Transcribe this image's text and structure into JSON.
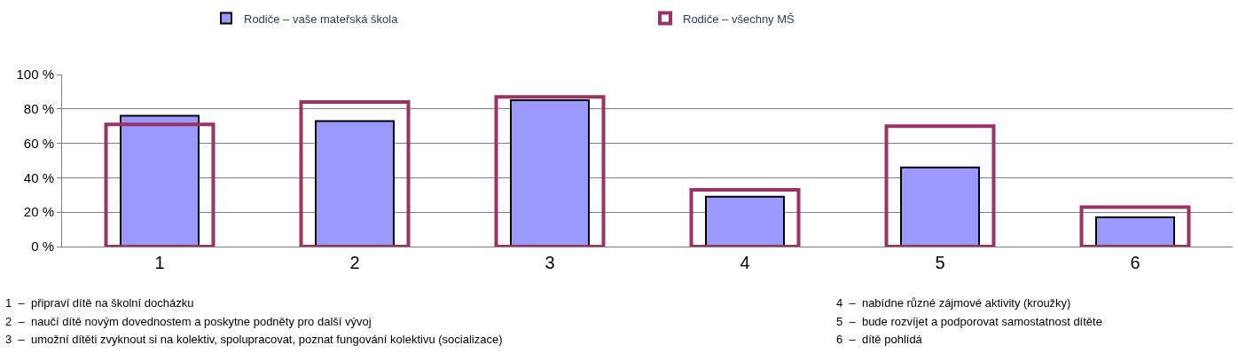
{
  "chart_data": {
    "type": "bar",
    "categories": [
      "1",
      "2",
      "3",
      "4",
      "5",
      "6"
    ],
    "series": [
      {
        "name": "Rodiče – vaše mateřská škola",
        "color": "#9999ff",
        "values": [
          76,
          73,
          85,
          29,
          46,
          17
        ]
      },
      {
        "name": "Rodiče – všechny MŠ",
        "color": "#993366",
        "values": [
          71,
          84,
          87,
          33,
          70,
          23
        ]
      }
    ],
    "ylim": [
      0,
      100
    ],
    "yticks": [
      {
        "value": 0,
        "label": "0 %"
      },
      {
        "value": 20,
        "label": "20 %"
      },
      {
        "value": 40,
        "label": "40 %"
      },
      {
        "value": 60,
        "label": "60 %"
      },
      {
        "value": 80,
        "label": "80 %"
      },
      {
        "value": 100,
        "label": "100 %"
      }
    ],
    "grid": "y",
    "legend": "top",
    "annotations": [
      "1  –  připraví dítě na školní docházku",
      "2  –  naučí dítě novým dovednostem a poskytne podněty pro další vývoj",
      "3  –  umožní dítěti zvyknout si na kolektiv, spolupracovat, poznat fungování kolektivu (socializace)",
      "4  –  nabídne různé zájmové aktivity (kroužky)",
      "5  –  bude rozvíjet a podporovat samostatnost dítěte",
      "6  –  dítě pohlídá"
    ]
  }
}
